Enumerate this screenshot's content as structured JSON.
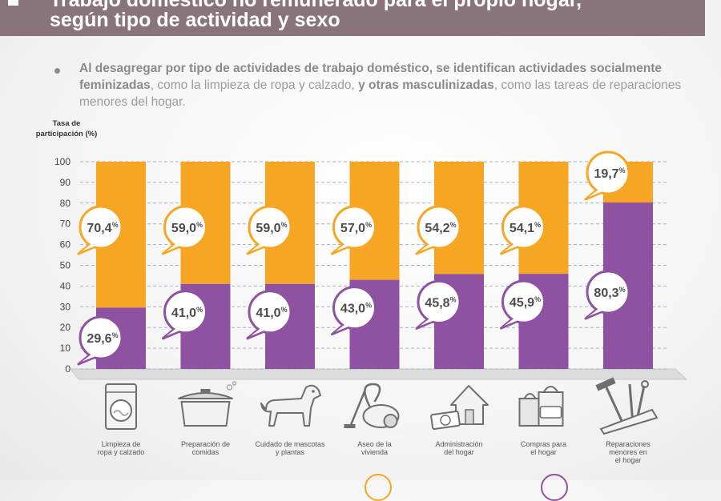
{
  "header": {
    "title_line1": "Trabajo doméstico no remunerado para el propio hogar,",
    "title_line2": "según tipo de actividad y sexo"
  },
  "bullet": {
    "part1_bold": "Al desagregar por tipo de actividades de trabajo doméstico, se identifican actividades socialmente feminizadas",
    "part2": ", como la limpieza de ropa y calzado, ",
    "part3_bold": "y otras masculinizadas",
    "part4": ", como las tareas de reparaciones menores del hogar."
  },
  "chart_data": {
    "type": "bar",
    "stacked": true,
    "ylabel": "Tasa de participación (%)",
    "ylim": [
      0,
      100
    ],
    "yticks": [
      0,
      10,
      20,
      30,
      40,
      50,
      60,
      70,
      80,
      90,
      100
    ],
    "grid": true,
    "categories": [
      "Limpieza de ropa y calzado",
      "Preparación de comidas",
      "Cuidado de mascotas y plantas",
      "Aseo de la vivienda",
      "Administración del hogar",
      "Compras para el hogar",
      "Reparaciones menores en el hogar"
    ],
    "category_lines": [
      [
        "Limpieza de",
        "ropa y calzado"
      ],
      [
        "Preparación de",
        "comidas"
      ],
      [
        "Cuidado de mascotas",
        "y plantas"
      ],
      [
        "Aseo de la",
        "vivienda"
      ],
      [
        "Administración",
        "del hogar"
      ],
      [
        "Compras para",
        "el hogar"
      ],
      [
        "Reparaciones",
        "menores en",
        "el hogar"
      ]
    ],
    "icons": [
      "washing-machine-icon",
      "cooking-pot-icon",
      "dog-icon",
      "vacuum-cleaner-icon",
      "house-money-icon",
      "shopping-bags-icon",
      "tools-icon"
    ],
    "series": [
      {
        "color": "#8f51a1",
        "values": [
          29.6,
          41.0,
          41.0,
          43.0,
          45.8,
          45.9,
          80.3
        ],
        "labels": [
          "29,6",
          "41,0",
          "41,0",
          "43,0",
          "45,8",
          "45,9",
          "80,3"
        ]
      },
      {
        "color": "#f6a623",
        "values": [
          70.4,
          59.0,
          59.0,
          57.0,
          54.2,
          54.1,
          19.7
        ],
        "labels": [
          "70,4",
          "59,0",
          "59,0",
          "57,0",
          "54,2",
          "54,1",
          "19,7"
        ]
      }
    ],
    "percent_sign": "%"
  }
}
